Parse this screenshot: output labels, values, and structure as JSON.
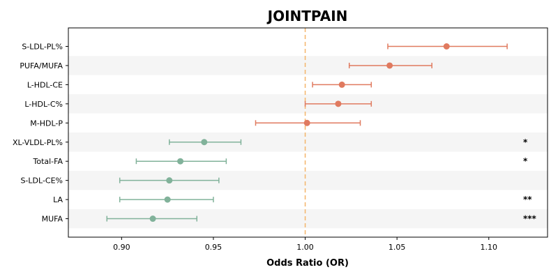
{
  "chart_data": {
    "type": "scatter",
    "subtype": "forest-plot",
    "title": "JOINTPAIN",
    "xlabel": "Odds Ratio (OR)",
    "ylabel": "",
    "xlim": [
      0.871,
      1.132
    ],
    "xticks": [
      "0.90",
      "0.95",
      "1.00",
      "1.05",
      "1.10"
    ],
    "reference_line": 1.0,
    "grid": false,
    "row_shading": "alternating light gray",
    "colors": {
      "positive": "#E07A5F",
      "negative": "#81B29A",
      "reference": "#F4B56A",
      "band": "#F5F5F5"
    },
    "rows": [
      {
        "label": "S-LDL-PL%",
        "or": 1.077,
        "ci_low": 1.045,
        "ci_high": 1.11,
        "sig": ""
      },
      {
        "label": "PUFA/MUFA",
        "or": 1.046,
        "ci_low": 1.024,
        "ci_high": 1.069,
        "sig": ""
      },
      {
        "label": "L-HDL-CE",
        "or": 1.02,
        "ci_low": 1.004,
        "ci_high": 1.036,
        "sig": ""
      },
      {
        "label": "L-HDL-C%",
        "or": 1.018,
        "ci_low": 1.0,
        "ci_high": 1.036,
        "sig": ""
      },
      {
        "label": "M-HDL-P",
        "or": 1.001,
        "ci_low": 0.973,
        "ci_high": 1.03,
        "sig": ""
      },
      {
        "label": "XL-VLDL-PL%",
        "or": 0.945,
        "ci_low": 0.926,
        "ci_high": 0.965,
        "sig": "*"
      },
      {
        "label": "Total-FA",
        "or": 0.932,
        "ci_low": 0.908,
        "ci_high": 0.957,
        "sig": "*"
      },
      {
        "label": "S-LDL-CE%",
        "or": 0.926,
        "ci_low": 0.899,
        "ci_high": 0.953,
        "sig": ""
      },
      {
        "label": "LA",
        "or": 0.925,
        "ci_low": 0.899,
        "ci_high": 0.95,
        "sig": "**"
      },
      {
        "label": "MUFA",
        "or": 0.917,
        "ci_low": 0.892,
        "ci_high": 0.941,
        "sig": "***"
      }
    ]
  }
}
